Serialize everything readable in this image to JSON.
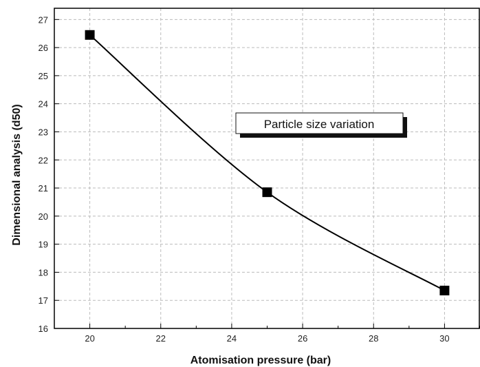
{
  "chart_data": {
    "type": "line",
    "title": "",
    "xlabel": "Atomisation pressure (bar)",
    "ylabel": "Dimensional analysis (d50)",
    "xlim": [
      19,
      31
    ],
    "ylim": [
      16,
      27.4
    ],
    "x_ticks": [
      "20",
      "22",
      "24",
      "26",
      "28",
      "30"
    ],
    "y_ticks": [
      "16",
      "17",
      "18",
      "19",
      "20",
      "21",
      "22",
      "23",
      "24",
      "25",
      "26",
      "27"
    ],
    "grid": true,
    "grid_style": "dashed",
    "legend_position": "upper-right",
    "series": [
      {
        "name": "Particle size variation",
        "x": [
          20,
          25,
          30
        ],
        "y": [
          26.45,
          20.85,
          17.35
        ],
        "marker": "square",
        "color": "#000000"
      }
    ]
  }
}
